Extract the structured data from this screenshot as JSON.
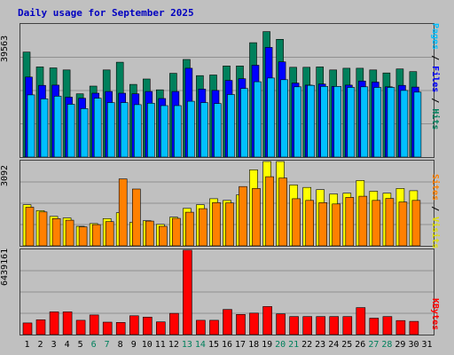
{
  "title": "Daily usage for September 2025",
  "colors": {
    "background": "#c0c0c0",
    "hits": "#00805c",
    "files": "#0000ff",
    "pages": "#00c0ff",
    "visits": "#ffff00",
    "sites": "#ff8000",
    "kbytes": "#ff0000",
    "title": "#0000c0",
    "weekday": "#000000",
    "weekend": "#00805c"
  },
  "legends": {
    "panel1": [
      "Pages",
      " / ",
      "Files",
      " / ",
      "Hits"
    ],
    "panel2": [
      "Sites",
      " / ",
      "Visits"
    ],
    "panel3": [
      "KBytes"
    ]
  },
  "chart_data": [
    {
      "type": "bar",
      "name": "hits-files-pages",
      "ymax_label": "39563",
      "ylim": [
        0,
        39563
      ],
      "categories": [
        "1",
        "2",
        "3",
        "4",
        "5",
        "6",
        "7",
        "8",
        "9",
        "10",
        "11",
        "12",
        "13",
        "14",
        "15",
        "16",
        "17",
        "18",
        "19",
        "20",
        "21",
        "22",
        "23",
        "24",
        "25",
        "26",
        "27",
        "28",
        "29",
        "30",
        "31"
      ],
      "series": [
        {
          "name": "Hits",
          "values": [
            31200,
            26800,
            26500,
            25900,
            18800,
            21100,
            25900,
            28200,
            21600,
            23200,
            20000,
            24900,
            29000,
            24200,
            24400,
            27100,
            27100,
            34000,
            37300,
            35000,
            26700,
            26700,
            26800,
            25900,
            26400,
            26400,
            25900,
            25000,
            26200,
            25400,
            0
          ]
        },
        {
          "name": "Files",
          "values": [
            23800,
            21300,
            21400,
            17800,
            17500,
            19000,
            19500,
            19000,
            18800,
            19500,
            17400,
            19500,
            26400,
            20200,
            19800,
            22800,
            23300,
            27300,
            32600,
            28300,
            22000,
            21400,
            21700,
            21000,
            21400,
            22600,
            22300,
            20900,
            21300,
            20800,
            0
          ]
        },
        {
          "name": "Pages",
          "values": [
            18500,
            17300,
            18100,
            15700,
            14400,
            17500,
            16200,
            16200,
            15600,
            16000,
            15300,
            15300,
            16600,
            16200,
            15900,
            18600,
            20400,
            22400,
            23500,
            23000,
            20900,
            21300,
            21000,
            21000,
            20700,
            20900,
            20700,
            20700,
            19800,
            19300,
            0
          ]
        }
      ]
    },
    {
      "type": "bar",
      "name": "visits-sites",
      "ymax_label": "3092",
      "ylim": [
        0,
        3092
      ],
      "categories": [
        "1",
        "2",
        "3",
        "4",
        "5",
        "6",
        "7",
        "8",
        "9",
        "10",
        "11",
        "12",
        "13",
        "14",
        "15",
        "16",
        "17",
        "18",
        "19",
        "20",
        "21",
        "22",
        "23",
        "24",
        "25",
        "26",
        "27",
        "28",
        "29",
        "30",
        "31"
      ],
      "series": [
        {
          "name": "Visits",
          "values": [
            1490,
            1280,
            1070,
            1010,
            710,
            810,
            990,
            1200,
            850,
            910,
            780,
            1040,
            1360,
            1490,
            1710,
            1650,
            1850,
            2760,
            3060,
            3060,
            2210,
            2120,
            2040,
            1880,
            1910,
            2370,
            1980,
            1910,
            2080,
            2000,
            0
          ]
        },
        {
          "name": "Sites",
          "values": [
            1400,
            1230,
            990,
            930,
            690,
            770,
            880,
            2430,
            2060,
            900,
            710,
            1000,
            1220,
            1350,
            1570,
            1560,
            2150,
            2080,
            2510,
            2460,
            1710,
            1650,
            1570,
            1520,
            1760,
            1800,
            1650,
            1720,
            1590,
            1650,
            0
          ]
        }
      ]
    },
    {
      "type": "bar",
      "name": "kbytes",
      "ymax_label": "6439161",
      "ylim": [
        0,
        6439161
      ],
      "categories": [
        "1",
        "2",
        "3",
        "4",
        "5",
        "6",
        "7",
        "8",
        "9",
        "10",
        "11",
        "12",
        "13",
        "14",
        "15",
        "16",
        "17",
        "18",
        "19",
        "20",
        "21",
        "22",
        "23",
        "24",
        "25",
        "26",
        "27",
        "28",
        "29",
        "30",
        "31"
      ],
      "series": [
        {
          "name": "KBytes",
          "values": [
            880000,
            1120000,
            1720000,
            1720000,
            1080000,
            1480000,
            940000,
            920000,
            1420000,
            1320000,
            960000,
            1600000,
            6380000,
            1080000,
            1080000,
            1900000,
            1520000,
            1620000,
            2120000,
            1560000,
            1360000,
            1360000,
            1360000,
            1360000,
            1360000,
            2040000,
            1240000,
            1360000,
            1060000,
            1000000,
            0
          ]
        }
      ]
    }
  ],
  "day_labels": [
    "1",
    "2",
    "3",
    "4",
    "5",
    "6",
    "7",
    "8",
    "9",
    "10",
    "11",
    "12",
    "13",
    "14",
    "15",
    "16",
    "17",
    "18",
    "19",
    "20",
    "21",
    "22",
    "23",
    "24",
    "25",
    "26",
    "27",
    "28",
    "29",
    "30",
    "31"
  ],
  "weekend_days": [
    6,
    7,
    13,
    14,
    20,
    21,
    27,
    28
  ]
}
